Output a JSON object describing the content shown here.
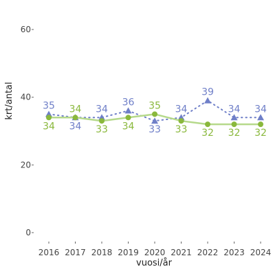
{
  "chart_data": {
    "type": "line",
    "xlabel": "vuosi/år",
    "ylabel": "krt/antal",
    "x": [
      "2016",
      "2017",
      "2018",
      "2019",
      "2020",
      "2021",
      "2022",
      "2023",
      "2024"
    ],
    "y_ticks": [
      "0",
      "20",
      "40",
      "60"
    ],
    "ylim": [
      0,
      60
    ],
    "grid": false,
    "series": [
      {
        "values": [
          35,
          34,
          34,
          36,
          33,
          34,
          39,
          34,
          34
        ],
        "labels": [
          "35",
          "34",
          "34",
          "36",
          "33",
          "34",
          "39",
          "34",
          "34"
        ],
        "color": "#6f7fc8",
        "line_style": "dotted",
        "marker": "triangle"
      },
      {
        "values": [
          34,
          34,
          33,
          34,
          35,
          33,
          32,
          32,
          32
        ],
        "labels": [
          "34",
          "34",
          "33",
          "34",
          "35",
          "33",
          "32",
          "32",
          "32"
        ],
        "color": "#8ab83c",
        "line_color": "#b5d98a",
        "line_style": "solid",
        "marker": "circle"
      }
    ]
  }
}
